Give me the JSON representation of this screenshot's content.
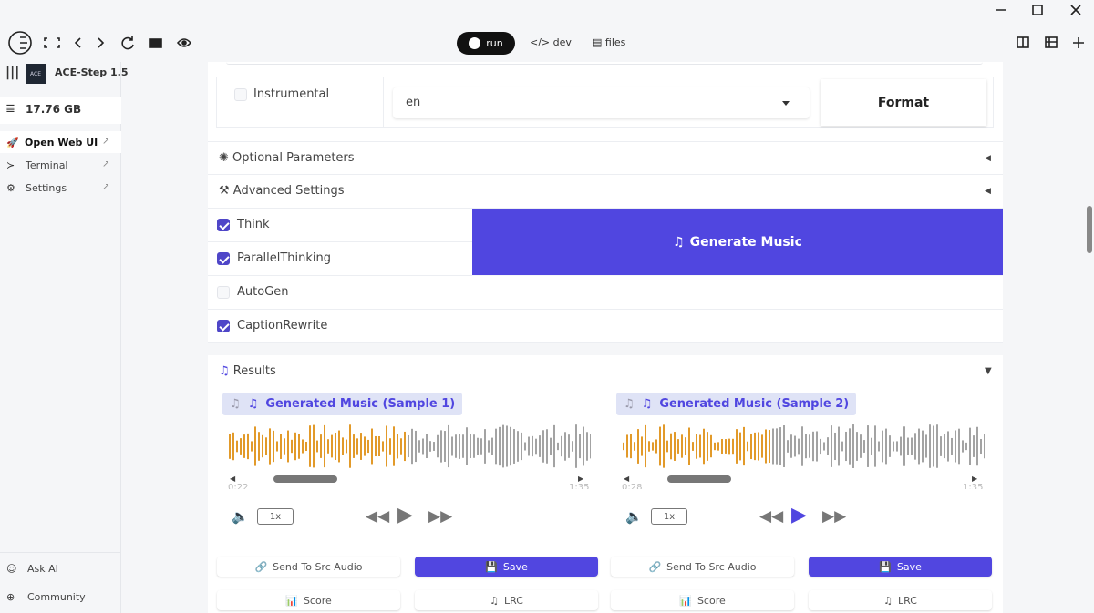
{
  "toolbar": {
    "run": "run",
    "dev": "dev",
    "files": "files"
  },
  "sidebar": {
    "logo": "ACE",
    "app": "ACE-Step 1.5",
    "storage": "17.76 GB",
    "items": [
      "Open Web UI",
      "Terminal",
      "Settings"
    ],
    "bottom": [
      "Ask AI",
      "Community"
    ]
  },
  "form": {
    "instrumental": "Instrumental",
    "language": "en",
    "format": "Format",
    "optional": "Optional Parameters",
    "advanced": "Advanced Settings",
    "checkboxes": [
      {
        "label": "Think",
        "checked": true
      },
      {
        "label": "ParallelThinking",
        "checked": true
      },
      {
        "label": "AutoGen",
        "checked": false
      },
      {
        "label": "CaptionRewrite",
        "checked": true
      }
    ],
    "generate": "Generate Music"
  },
  "results": {
    "title": "Results",
    "samples": [
      {
        "title": "Generated Music (Sample 1)",
        "start": "0:22",
        "end": "1:35",
        "speed": "1x",
        "actions": [
          "Send To Src Audio",
          "Save",
          "Score",
          "LRC"
        ]
      },
      {
        "title": "Generated Music (Sample 2)",
        "start": "0:28",
        "end": "1:35",
        "speed": "1x",
        "actions": [
          "Send To Src Audio",
          "Save",
          "Score",
          "LRC"
        ]
      }
    ]
  }
}
